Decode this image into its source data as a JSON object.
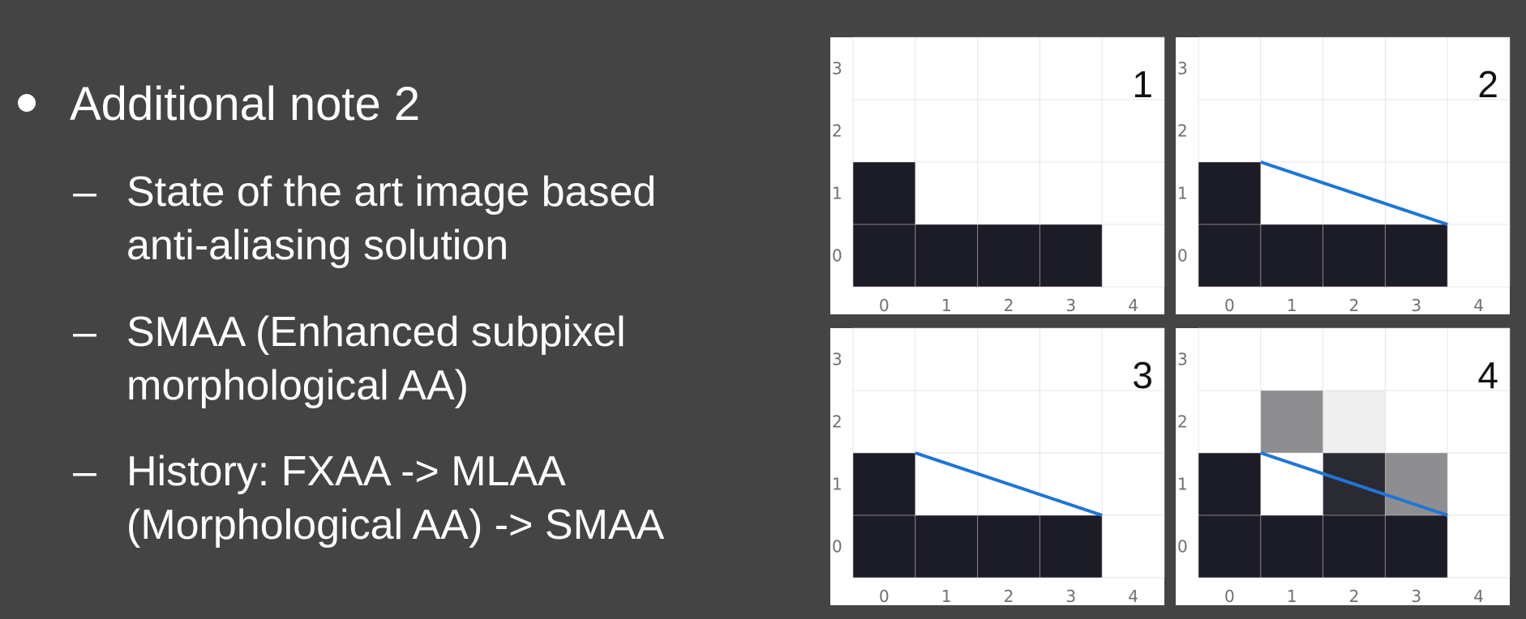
{
  "slide": {
    "heading": "Additional note 2",
    "subpoints": [
      {
        "dash": "–",
        "lines": [
          "State of the art image based",
          "anti-aliasing solution"
        ]
      },
      {
        "dash": "–",
        "lines": [
          "SMAA (Enhanced subpixel",
          "morphological AA)"
        ]
      },
      {
        "dash": "–",
        "lines": [
          "History: FXAA -> MLAA",
          "(Morphological AA) -> SMAA"
        ]
      }
    ]
  },
  "colors": {
    "background": "#444444",
    "dark_pixel": "#1c1c26",
    "medium_dark_pixel": "#2a2a33",
    "grey_pixel": "#8e8e91",
    "light_pixel": "#efeff0",
    "edge_line": "#1e76d6",
    "grid_line": "#e0c8da"
  },
  "panels": [
    {
      "label": "1",
      "x_ticks": [
        "0",
        "1",
        "2",
        "3",
        "4"
      ],
      "y_ticks": [
        "0",
        "1",
        "2",
        "3"
      ],
      "column_heights": [
        2,
        1,
        1,
        1,
        0
      ],
      "edge_line": null,
      "blended_cells": []
    },
    {
      "label": "2",
      "x_ticks": [
        "0",
        "1",
        "2",
        "3",
        "4"
      ],
      "y_ticks": [
        "0",
        "1",
        "2",
        "3"
      ],
      "column_heights": [
        2,
        1,
        1,
        1,
        0
      ],
      "edge_line": {
        "from": [
          0.5,
          2.0
        ],
        "to": [
          3.5,
          1.0
        ]
      },
      "blended_cells": []
    },
    {
      "label": "3",
      "x_ticks": [
        "0",
        "1",
        "2",
        "3",
        "4"
      ],
      "y_ticks": [
        "0",
        "1",
        "2",
        "3"
      ],
      "column_heights": [
        2,
        1,
        1,
        1,
        0
      ],
      "edge_line": {
        "from": [
          0.5,
          2.0
        ],
        "to": [
          3.5,
          1.0
        ]
      },
      "blended_cells": []
    },
    {
      "label": "4",
      "x_ticks": [
        "0",
        "1",
        "2",
        "3",
        "4"
      ],
      "y_ticks": [
        "0",
        "1",
        "2",
        "3"
      ],
      "column_heights": [
        2,
        1,
        1,
        1,
        0
      ],
      "edge_line": {
        "from": [
          0.5,
          2.0
        ],
        "to": [
          3.5,
          1.0
        ]
      },
      "blended_cells": [
        {
          "col": 1,
          "row": 2,
          "shade": "grey"
        },
        {
          "col": 2,
          "row": 2,
          "shade": "light"
        },
        {
          "col": 2,
          "row": 1,
          "shade": "medium_dark"
        },
        {
          "col": 3,
          "row": 1,
          "shade": "grey"
        }
      ]
    }
  ]
}
